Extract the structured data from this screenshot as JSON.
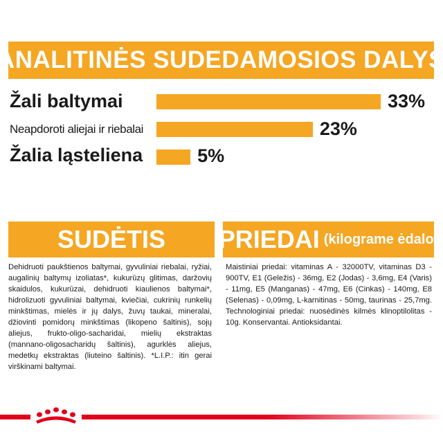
{
  "header": {
    "title": "ANALITINĖS SUDEDAMOSIOS DALYS"
  },
  "analytics": [
    {
      "label": "Žali baltymai",
      "percent": "33%",
      "value": 33
    },
    {
      "label": "Neapdoroti aliejai ir riebalai",
      "percent": "23%",
      "value": 23
    },
    {
      "label": "Žalia ląsteliena",
      "percent": "5%",
      "value": 5
    }
  ],
  "composition": {
    "title": "SUDĖTIS",
    "text": "Dehidruoti paukštienos baltymai, gyvuliniai riebalai, ryžiai, augalinių baltymų izoliatas*, kukurūzų glitimas, daržovių skaidulos, kukurūzai, dehidruoti kiaulienos baltymai*, hidrolizuoti gyvuliniai baltymai, kviečiai, cukrinių runkelių minkštimas, mielės ir jų dalys, žuvų taukai, mineralai, džiovinti pomidorų minkštimas (likopeno šaltinis), sojų aliejus, frukto-oligo-sacharidai, mielių ekstraktas (mannano-oligosacharidų šaltinis), agurklės aliejus, medetkų ekstraktas (liuteino šaltinis). *L.I.P.: itin gerai virškinami baltymai."
  },
  "additives": {
    "title": "PRIEDAI",
    "subtitle": "(kilograme ėdalo)",
    "text": "Maistiniai priedai: vitaminas A - 32000TV, vitaminas D3 - 900TV, E1 (Geležis) - 36mg, E2 (Jodas) - 3,6mg, E4 (Varis) - 11mg, E5 (Manganas) - 47mg, E6 (Cinkas) - 140mg, E8 (Selenas) - 0,09mg, L-karnitinas - 50mg, taurinas - 25,7mg. Technologiniai priedai: nuosėdinės kilmės klinoptilolitas - 10g. Konservantai. Antioksidantai."
  },
  "colors": {
    "accent": "#f5a623",
    "brand": "#e2001a"
  },
  "brand": {
    "logo_icon": "royal-canin-crown-icon"
  }
}
